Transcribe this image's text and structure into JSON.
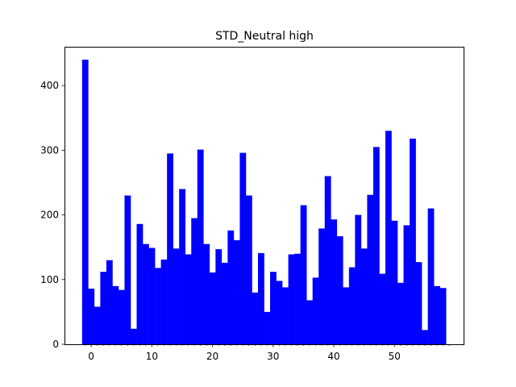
{
  "chart_data": {
    "type": "bar",
    "title": "STD_Neutral high",
    "xlabel": "",
    "ylabel": "",
    "bar_color": "#0000ff",
    "xlim": [
      -4.4,
      61.4
    ],
    "ylim": [
      0,
      460
    ],
    "x_ticks": [
      0,
      10,
      20,
      30,
      40,
      50
    ],
    "y_ticks": [
      0,
      100,
      200,
      300,
      400
    ],
    "minor_x_ticks": [
      -1,
      1,
      2,
      3,
      4,
      5,
      6,
      7,
      8,
      9,
      11,
      12,
      13,
      14,
      15,
      16,
      17,
      18,
      19,
      21,
      22,
      23,
      24,
      25,
      26,
      27,
      28,
      29,
      31,
      32,
      33,
      34,
      35,
      36,
      37,
      38,
      39,
      41,
      42,
      43,
      44,
      45,
      46,
      47,
      48,
      49,
      51,
      52,
      53,
      54,
      55,
      56,
      57,
      58,
      59
    ],
    "x": [
      -1,
      0,
      1,
      2,
      3,
      4,
      5,
      6,
      7,
      8,
      9,
      10,
      11,
      12,
      13,
      14,
      15,
      16,
      17,
      18,
      19,
      20,
      21,
      22,
      23,
      24,
      25,
      26,
      27,
      28,
      29,
      30,
      31,
      32,
      33,
      34,
      35,
      36,
      37,
      38,
      39,
      40,
      41,
      42,
      43,
      44,
      45,
      46,
      47,
      48,
      49,
      50,
      51,
      52,
      53,
      54,
      55,
      56,
      57,
      58,
      59
    ],
    "values": [
      440,
      86,
      58,
      112,
      130,
      90,
      84,
      230,
      24,
      186,
      155,
      149,
      118,
      131,
      295,
      148,
      240,
      139,
      195,
      301,
      155,
      111,
      147,
      126,
      176,
      161,
      296,
      230,
      80,
      141,
      50,
      112,
      98,
      88,
      139,
      140,
      215,
      68,
      103,
      179,
      260,
      193,
      167,
      88,
      119,
      200,
      148,
      231,
      305,
      109,
      330,
      191,
      95,
      184,
      318,
      127,
      22,
      210,
      90,
      87,
      0
    ]
  }
}
